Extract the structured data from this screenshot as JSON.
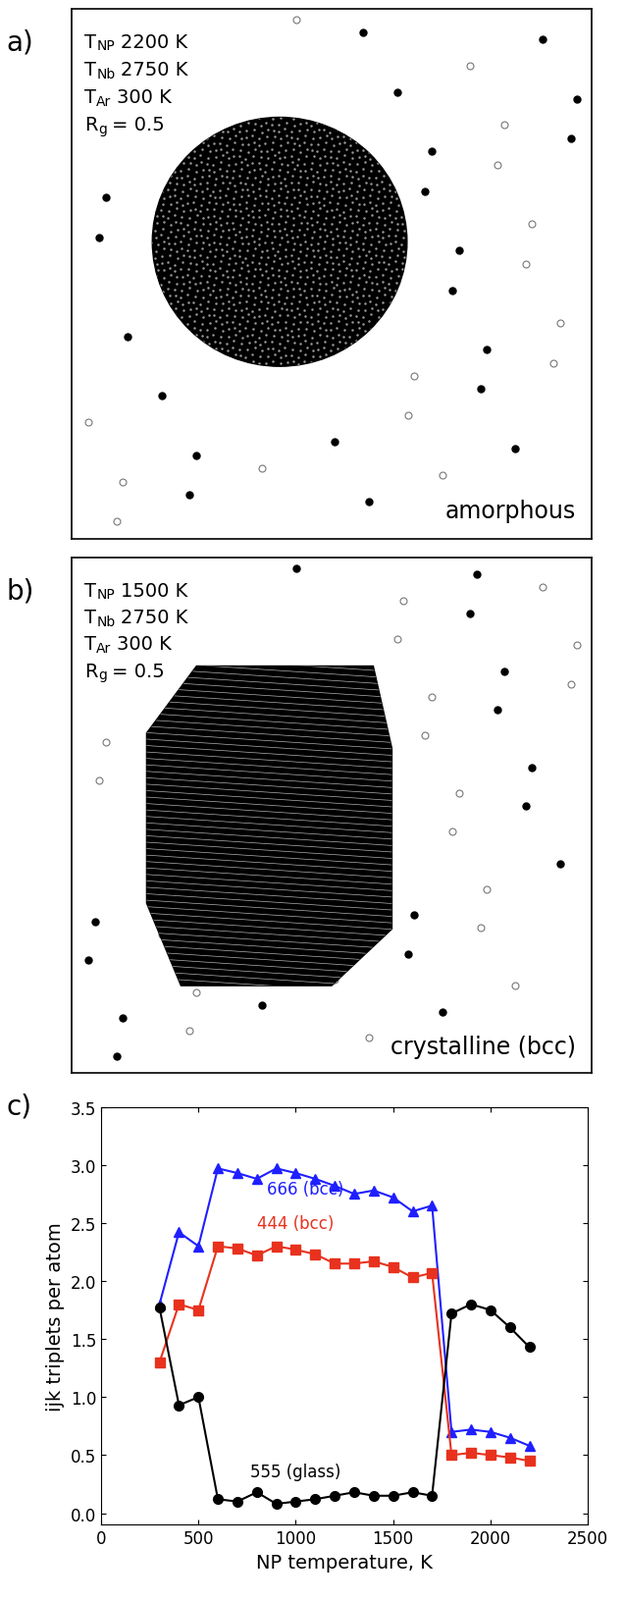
{
  "panels": [
    {
      "label": "a)",
      "conditions": [
        {
          "symbol": "T",
          "subscript": "NP",
          "value": "2200 K"
        },
        {
          "symbol": "T",
          "subscript": "Nb",
          "value": "2750 K"
        },
        {
          "symbol": "T",
          "subscript": "Ar",
          "value": "300 K"
        },
        {
          "symbol": "R",
          "subscript": "g",
          "value": "= 0.5"
        }
      ],
      "caption": "amorphous"
    },
    {
      "label": "b)",
      "conditions": [
        {
          "symbol": "T",
          "subscript": "NP",
          "value": "1500 K"
        },
        {
          "symbol": "T",
          "subscript": "Nb",
          "value": "2750 K"
        },
        {
          "symbol": "T",
          "subscript": "Ar",
          "value": "300 K"
        },
        {
          "symbol": "R",
          "subscript": "g",
          "value": "= 0.5"
        }
      ],
      "caption": "crystalline (bcc)"
    }
  ],
  "chart_data": {
    "label": "c)",
    "type": "line",
    "xlabel": "NP temperature, K",
    "ylabel": "ijk triplets per atom",
    "x": [
      300,
      400,
      500,
      600,
      700,
      800,
      900,
      1000,
      1100,
      1200,
      1300,
      1400,
      1500,
      1600,
      1700,
      1800,
      1900,
      2000,
      2100,
      2200
    ],
    "xlim": [
      0,
      2500
    ],
    "xticks": [
      0,
      500,
      1000,
      1500,
      2000,
      2500
    ],
    "ylim": [
      -0.1,
      3.5
    ],
    "yticks": [
      {
        "value": 0.0,
        "label": "0.0"
      },
      {
        "value": 0.5,
        "label": "0.5"
      },
      {
        "value": 1.0,
        "label": "1.0"
      },
      {
        "value": 1.5,
        "label": "1.5"
      },
      {
        "value": 2.0,
        "label": "2.0"
      },
      {
        "value": 2.5,
        "label": "2.5"
      },
      {
        "value": 3.0,
        "label": "3.0"
      },
      {
        "value": 3.5,
        "label": "3.5"
      }
    ],
    "series": [
      {
        "name": "666 (bcc)",
        "color": "#1f1fff",
        "marker": "triangle",
        "label_position": [
          1050,
          2.72
        ],
        "values": [
          1.8,
          2.42,
          2.3,
          2.97,
          2.93,
          2.88,
          2.97,
          2.93,
          2.88,
          2.82,
          2.75,
          2.78,
          2.72,
          2.6,
          2.65,
          0.7,
          0.72,
          0.7,
          0.65,
          0.58
        ]
      },
      {
        "name": "444 (bcc)",
        "color": "#e8321e",
        "marker": "square",
        "label_position": [
          1000,
          2.42
        ],
        "values": [
          1.3,
          1.8,
          1.75,
          2.3,
          2.28,
          2.22,
          2.3,
          2.27,
          2.23,
          2.15,
          2.15,
          2.17,
          2.12,
          2.03,
          2.07,
          0.5,
          0.52,
          0.5,
          0.48,
          0.45
        ]
      },
      {
        "name": "555 (glass)",
        "color": "#000000",
        "marker": "circle",
        "label_position": [
          1000,
          0.28
        ],
        "values": [
          1.77,
          0.93,
          1.0,
          0.12,
          0.1,
          0.18,
          0.08,
          0.1,
          0.12,
          0.15,
          0.18,
          0.15,
          0.15,
          0.18,
          0.15,
          1.72,
          1.8,
          1.75,
          1.6,
          1.43
        ]
      }
    ]
  }
}
